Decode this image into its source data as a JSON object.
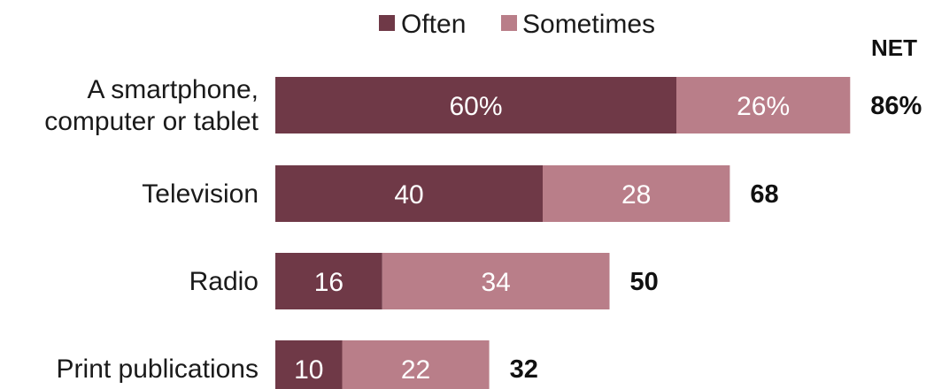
{
  "chart_data": {
    "type": "bar",
    "orientation": "horizontal",
    "stacked": true,
    "title": "",
    "xlabel": "",
    "ylabel": "",
    "xlim": [
      0,
      100
    ],
    "categories": [
      [
        "A smartphone,",
        "computer or tablet"
      ],
      [
        "Television"
      ],
      [
        "Radio"
      ],
      [
        "Print publications"
      ]
    ],
    "series": [
      {
        "name": "Often",
        "color": "#6f3947",
        "values": [
          60,
          40,
          16,
          10
        ],
        "labels": [
          "60%",
          "40",
          "16",
          "10"
        ]
      },
      {
        "name": "Sometimes",
        "color": "#b97e89",
        "values": [
          26,
          28,
          34,
          22
        ],
        "labels": [
          "26%",
          "28",
          "34",
          "22"
        ]
      }
    ],
    "net": {
      "header": "NET",
      "values": [
        86,
        68,
        50,
        32
      ],
      "labels": [
        "86%",
        "68",
        "50",
        "32"
      ]
    },
    "legend": "top",
    "grid": false
  }
}
